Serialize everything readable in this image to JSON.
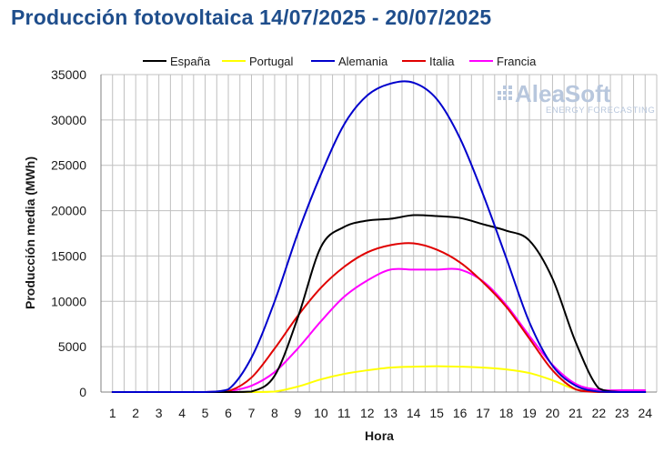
{
  "title": "Producción fotovoltaica 14/07/2025 - 20/07/2025",
  "logo": {
    "name": "AleaSoft",
    "tagline": "ENERGY FORECASTING"
  },
  "colors": {
    "title": "#1f4e8c",
    "grid": "#c0c0c0",
    "España": "#000000",
    "Portugal": "#ffff00",
    "Alemania": "#0000cc",
    "Italia": "#e00000",
    "Francia": "#ff00ff"
  },
  "chart_data": {
    "type": "line",
    "title": "Producción fotovoltaica 14/07/2025 - 20/07/2025",
    "xlabel": "Hora",
    "ylabel": "Producción media (MWh)",
    "xlim": [
      1,
      24
    ],
    "ylim": [
      0,
      35000
    ],
    "yticks": [
      0,
      5000,
      10000,
      15000,
      20000,
      25000,
      30000,
      35000
    ],
    "xticks": [
      1,
      2,
      3,
      4,
      5,
      6,
      7,
      8,
      9,
      10,
      11,
      12,
      13,
      14,
      15,
      16,
      17,
      18,
      19,
      20,
      21,
      22,
      23,
      24
    ],
    "grid": true,
    "legend_position": "top",
    "x": [
      1,
      2,
      3,
      4,
      5,
      6,
      7,
      8,
      9,
      10,
      11,
      12,
      13,
      14,
      15,
      16,
      17,
      18,
      19,
      20,
      21,
      22,
      23,
      24
    ],
    "series": [
      {
        "name": "España",
        "values": [
          0,
          0,
          0,
          0,
          0,
          0,
          50,
          1800,
          8200,
          16000,
          18200,
          18900,
          19100,
          19500,
          19400,
          19200,
          18500,
          17800,
          16700,
          12500,
          5500,
          400,
          0,
          0
        ]
      },
      {
        "name": "Portugal",
        "values": [
          0,
          0,
          0,
          0,
          0,
          0,
          0,
          50,
          600,
          1400,
          2000,
          2400,
          2700,
          2800,
          2850,
          2800,
          2700,
          2500,
          2100,
          1300,
          300,
          0,
          0,
          0
        ]
      },
      {
        "name": "Alemania",
        "values": [
          0,
          0,
          0,
          0,
          0,
          300,
          3800,
          10000,
          17500,
          24000,
          29500,
          32700,
          34000,
          34100,
          32300,
          28000,
          21800,
          14800,
          7700,
          2900,
          700,
          50,
          0,
          0
        ]
      },
      {
        "name": "Italia",
        "values": [
          0,
          0,
          0,
          0,
          0,
          100,
          1600,
          4800,
          8400,
          11500,
          13800,
          15400,
          16200,
          16400,
          15700,
          14300,
          12100,
          9400,
          5900,
          2400,
          300,
          0,
          0,
          0
        ]
      },
      {
        "name": "Francia",
        "values": [
          0,
          0,
          0,
          0,
          0,
          100,
          700,
          2200,
          4800,
          7800,
          10500,
          12300,
          13500,
          13500,
          13500,
          13500,
          12200,
          9600,
          6200,
          3000,
          900,
          250,
          200,
          200
        ]
      }
    ]
  }
}
